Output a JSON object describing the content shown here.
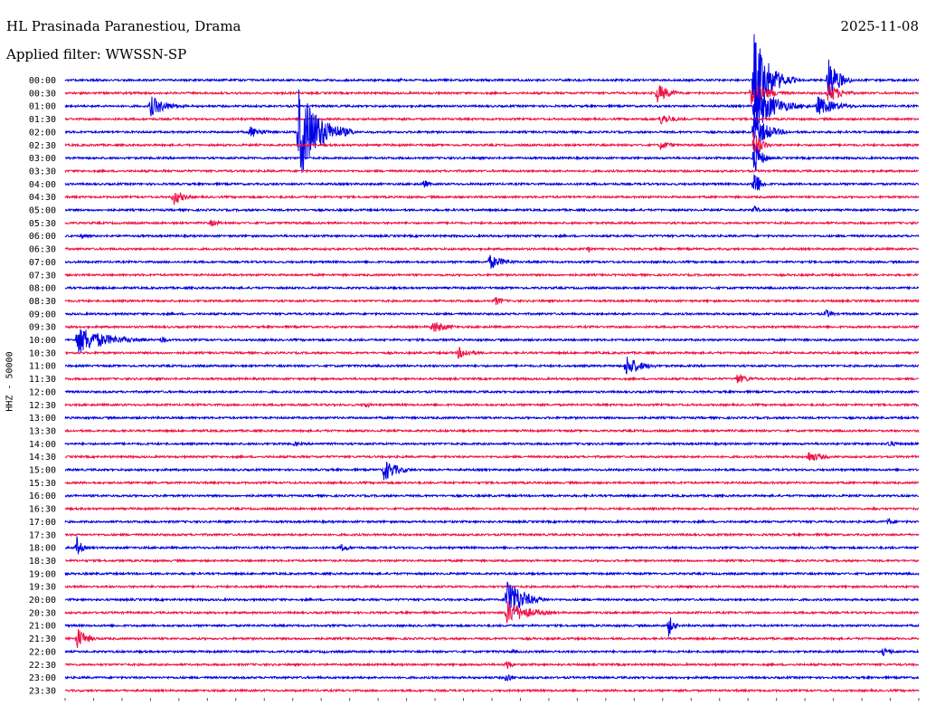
{
  "header": {
    "station": "HL Prasinada Paranestiou, Drama",
    "filter_prefix": "Applied filter:",
    "filter_value": "WWSSN-SP",
    "date": "2025-11-08"
  },
  "side_label": "HHZ - 50000",
  "colors": {
    "trace_a": "#0000e6",
    "trace_b": "#ee1144",
    "text": "#000000"
  },
  "chart_data": {
    "type": "line",
    "title": "HL Prasinada Paranestiou, Drama",
    "subtitle": "Applied filter: WWSSN-SP",
    "ylabel": "HHZ - 50000",
    "x_unit": "minutes within each 30-minute row",
    "xlim": [
      0,
      30
    ],
    "row_labels": [
      "00:00",
      "00:30",
      "01:00",
      "01:30",
      "02:00",
      "02:30",
      "03:00",
      "03:30",
      "04:00",
      "04:30",
      "05:00",
      "05:30",
      "06:00",
      "06:30",
      "07:00",
      "07:30",
      "08:00",
      "08:30",
      "09:00",
      "09:30",
      "10:00",
      "10:30",
      "11:00",
      "11:30",
      "12:00",
      "12:30",
      "13:00",
      "13:30",
      "14:00",
      "14:30",
      "15:00",
      "15:30",
      "16:00",
      "16:30",
      "17:00",
      "17:30",
      "18:00",
      "18:30",
      "19:00",
      "19:30",
      "20:00",
      "20:30",
      "21:00",
      "21:30",
      "22:00",
      "22:30",
      "23:00",
      "23:30"
    ],
    "row_colors": [
      "#0000e6",
      "#ee1144"
    ],
    "events": [
      {
        "row": "00:00",
        "minute": 11.7,
        "amp": 3,
        "dur": 0.5
      },
      {
        "row": "00:00",
        "minute": 24.2,
        "amp": 55,
        "dur": 1.5
      },
      {
        "row": "00:00",
        "minute": 25.4,
        "amp": 4,
        "dur": 1.3
      },
      {
        "row": "00:00",
        "minute": 26.8,
        "amp": 30,
        "dur": 1.0
      },
      {
        "row": "00:30",
        "minute": 20.8,
        "amp": 12,
        "dur": 1.2
      },
      {
        "row": "00:30",
        "minute": 24.1,
        "amp": 14,
        "dur": 1.8
      },
      {
        "row": "00:30",
        "minute": 26.8,
        "amp": 12,
        "dur": 1.3
      },
      {
        "row": "01:00",
        "minute": 3.0,
        "amp": 12,
        "dur": 1.7
      },
      {
        "row": "01:00",
        "minute": 24.2,
        "amp": 30,
        "dur": 2.0
      },
      {
        "row": "01:00",
        "minute": 26.4,
        "amp": 12,
        "dur": 2.0
      },
      {
        "row": "01:30",
        "minute": 20.9,
        "amp": 7,
        "dur": 1.5
      },
      {
        "row": "02:00",
        "minute": 6.5,
        "amp": 7,
        "dur": 1.4
      },
      {
        "row": "02:00",
        "minute": 8.2,
        "amp": 55,
        "dur": 2.0
      },
      {
        "row": "02:00",
        "minute": 24.2,
        "amp": 20,
        "dur": 1.5
      },
      {
        "row": "02:30",
        "minute": 20.9,
        "amp": 6,
        "dur": 1.2
      },
      {
        "row": "02:30",
        "minute": 24.2,
        "amp": 18,
        "dur": 0.8
      },
      {
        "row": "03:00",
        "minute": 24.2,
        "amp": 20,
        "dur": 0.8
      },
      {
        "row": "04:00",
        "minute": 12.6,
        "amp": 6,
        "dur": 0.5
      },
      {
        "row": "04:00",
        "minute": 24.2,
        "amp": 20,
        "dur": 0.6
      },
      {
        "row": "04:30",
        "minute": 3.8,
        "amp": 10,
        "dur": 1.0
      },
      {
        "row": "05:00",
        "minute": 24.2,
        "amp": 8,
        "dur": 0.4
      },
      {
        "row": "05:30",
        "minute": 5.1,
        "amp": 4,
        "dur": 1.3
      },
      {
        "row": "06:00",
        "minute": 0.6,
        "amp": 4,
        "dur": 0.5
      },
      {
        "row": "06:30",
        "minute": 18.4,
        "amp": 5,
        "dur": 0.2
      },
      {
        "row": "07:00",
        "minute": 14.9,
        "amp": 9,
        "dur": 1.5
      },
      {
        "row": "08:30",
        "minute": 15.1,
        "amp": 6,
        "dur": 0.8
      },
      {
        "row": "09:00",
        "minute": 26.7,
        "amp": 6,
        "dur": 0.8
      },
      {
        "row": "09:30",
        "minute": 12.9,
        "amp": 8,
        "dur": 1.5
      },
      {
        "row": "10:00",
        "minute": 0.4,
        "amp": 17,
        "dur": 3.0
      },
      {
        "row": "10:00",
        "minute": 3.4,
        "amp": 7,
        "dur": 0.4
      },
      {
        "row": "10:30",
        "minute": 13.8,
        "amp": 7,
        "dur": 1.5
      },
      {
        "row": "11:00",
        "minute": 19.7,
        "amp": 13,
        "dur": 1.5
      },
      {
        "row": "11:30",
        "minute": 23.6,
        "amp": 6,
        "dur": 1.4
      },
      {
        "row": "12:30",
        "minute": 10.5,
        "amp": 5,
        "dur": 0.6
      },
      {
        "row": "14:00",
        "minute": 8.0,
        "amp": 3,
        "dur": 1.2
      },
      {
        "row": "14:00",
        "minute": 28.9,
        "amp": 4,
        "dur": 1.2
      },
      {
        "row": "14:30",
        "minute": 26.1,
        "amp": 7,
        "dur": 1.5
      },
      {
        "row": "15:00",
        "minute": 11.2,
        "amp": 14,
        "dur": 1.3
      },
      {
        "row": "16:30",
        "minute": 28.4,
        "amp": 4,
        "dur": 0.3
      },
      {
        "row": "17:00",
        "minute": 28.9,
        "amp": 4,
        "dur": 1.1
      },
      {
        "row": "18:00",
        "minute": 9.7,
        "amp": 5,
        "dur": 0.9
      },
      {
        "row": "18:00",
        "minute": 0.4,
        "amp": 14,
        "dur": 0.5
      },
      {
        "row": "20:00",
        "minute": 15.5,
        "amp": 30,
        "dur": 1.5
      },
      {
        "row": "20:30",
        "minute": 15.5,
        "amp": 14,
        "dur": 2.3
      },
      {
        "row": "21:00",
        "minute": 21.2,
        "amp": 14,
        "dur": 0.5
      },
      {
        "row": "21:30",
        "minute": 0.4,
        "amp": 14,
        "dur": 1.0
      },
      {
        "row": "22:00",
        "minute": 28.7,
        "amp": 5,
        "dur": 1.2
      },
      {
        "row": "22:00",
        "minute": 15.7,
        "amp": 4,
        "dur": 0.3
      },
      {
        "row": "22:00",
        "minute": 9.1,
        "amp": 3,
        "dur": 0.3
      },
      {
        "row": "22:30",
        "minute": 15.5,
        "amp": 8,
        "dur": 0.5
      },
      {
        "row": "23:00",
        "minute": 15.5,
        "amp": 8,
        "dur": 0.5
      }
    ]
  }
}
